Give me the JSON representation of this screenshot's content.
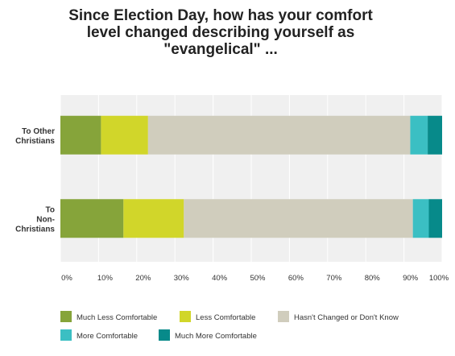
{
  "title": "Since Election Day, how has your comfort\nlevel changed describing yourself as\n\"evangelical\" ...",
  "chart_data": {
    "type": "bar",
    "orientation": "horizontal",
    "stacked": true,
    "percent_scale": true,
    "title": "Since Election Day, how has your comfort level changed describing yourself as \"evangelical\" ...",
    "categories": [
      "To Other Christians",
      "To Non-Christians"
    ],
    "category_label_lines": [
      [
        "To Other",
        "Christians"
      ],
      [
        "To",
        "Non-",
        "Christians"
      ]
    ],
    "series": [
      {
        "name": "Much Less Comfortable",
        "color": "#86a43a",
        "values": [
          10.7,
          16.6
        ]
      },
      {
        "name": "Less Comfortable",
        "color": "#d1d62a",
        "values": [
          12.4,
          15.9
        ]
      },
      {
        "name": "Hasn't Changed or Don't Know",
        "color": "#d0cdbd",
        "values": [
          69.1,
          60.3
        ]
      },
      {
        "name": "More Comfortable",
        "color": "#3bbfc3",
        "values": [
          4.6,
          4.2
        ]
      },
      {
        "name": "Much More Comfortable",
        "color": "#078a8a",
        "values": [
          3.8,
          3.5
        ]
      }
    ],
    "xlim": [
      0,
      100
    ],
    "xticks": [
      "0%",
      "10%",
      "20%",
      "30%",
      "40%",
      "50%",
      "60%",
      "70%",
      "80%",
      "90%",
      "100%"
    ],
    "grid": true,
    "legend_position": "bottom"
  }
}
